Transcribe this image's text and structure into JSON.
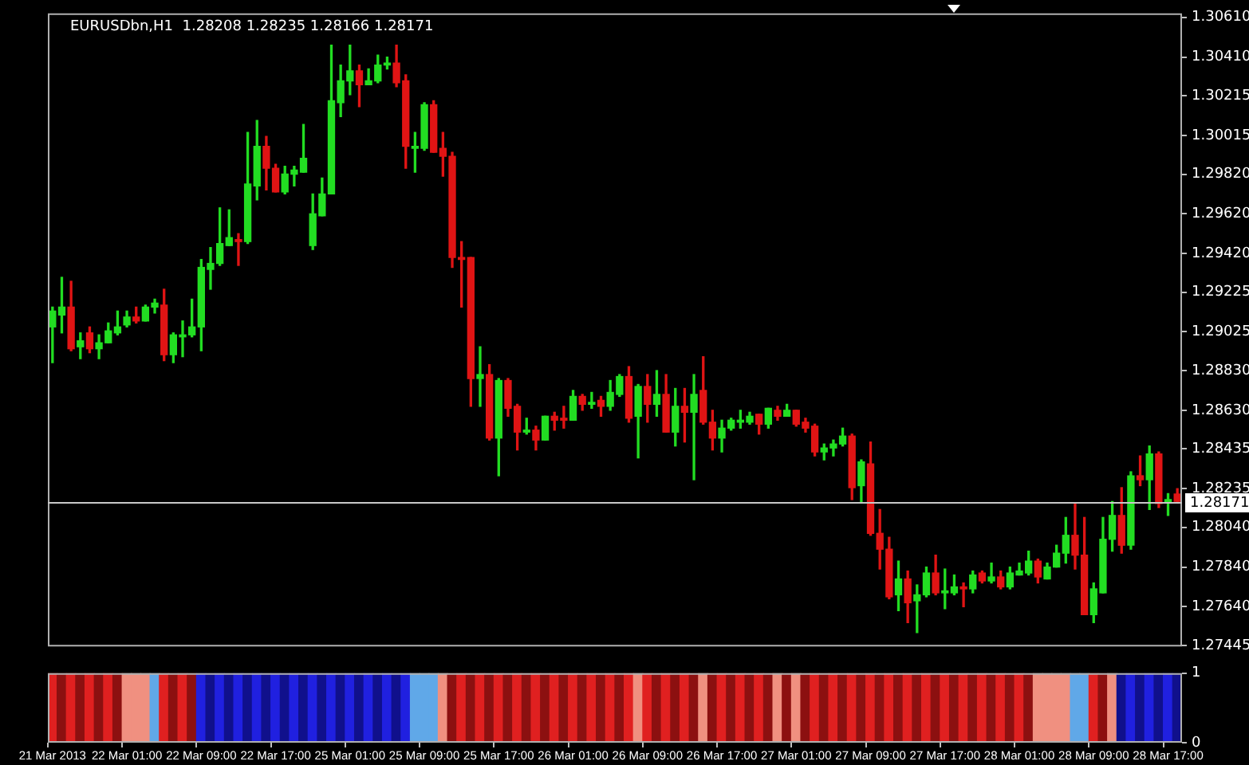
{
  "chart_data": [
    {
      "type": "candlestick",
      "title": "EURUSDbn,H1  1.28208 1.28235 1.28166 1.28171",
      "categories": [
        null,
        null,
        null,
        null,
        null,
        null,
        null,
        null,
        null,
        null,
        null,
        null,
        null,
        null,
        null,
        null,
        null,
        null,
        null,
        null,
        null,
        null,
        null,
        null,
        null,
        null,
        null,
        null,
        null,
        null,
        null,
        null,
        null,
        null,
        null,
        null,
        null,
        null,
        null,
        null,
        null,
        null,
        null,
        null,
        null,
        null,
        null,
        null,
        null,
        null,
        null,
        null,
        null,
        null,
        null,
        null,
        null,
        null,
        null,
        null,
        null,
        null,
        null,
        null,
        null,
        null,
        null,
        null,
        null,
        null,
        null,
        null,
        null,
        null,
        null,
        null,
        null,
        null,
        null,
        null,
        null,
        null,
        null,
        null,
        null,
        null,
        null,
        null,
        null,
        null,
        null,
        null,
        null,
        null,
        null,
        null,
        null,
        null,
        null,
        null,
        null,
        null,
        null,
        null,
        null,
        null,
        null,
        null,
        null,
        null,
        null,
        null,
        null,
        null,
        null,
        null,
        null,
        null,
        null,
        null,
        null,
        null
      ],
      "ohlc": [
        [
          1.2905,
          1.2915,
          1.2887,
          1.2913
        ],
        [
          1.2911,
          1.293,
          1.2902,
          1.2915
        ],
        [
          1.2915,
          1.2928,
          1.2893,
          1.2894
        ],
        [
          1.2895,
          1.2902,
          1.2889,
          1.2898
        ],
        [
          1.2902,
          1.2905,
          1.2892,
          1.2894
        ],
        [
          1.2894,
          1.2901,
          1.2889,
          1.2897
        ],
        [
          1.2897,
          1.2907,
          1.2897,
          1.2903
        ],
        [
          1.2902,
          1.2913,
          1.2901,
          1.2905
        ],
        [
          1.2906,
          1.2913,
          1.2905,
          1.291
        ],
        [
          1.291,
          1.2915,
          1.2907,
          1.2908
        ],
        [
          1.2908,
          1.2916,
          1.2908,
          1.2915
        ],
        [
          1.2915,
          1.2919,
          1.2912,
          1.2917
        ],
        [
          1.2916,
          1.2924,
          1.2888,
          1.2891
        ],
        [
          1.2891,
          1.2902,
          1.2887,
          1.2901
        ],
        [
          1.29,
          1.2908,
          1.289,
          1.2901
        ],
        [
          1.2901,
          1.2919,
          1.29,
          1.2905
        ],
        [
          1.2905,
          1.2939,
          1.2893,
          1.2935
        ],
        [
          1.2934,
          1.2945,
          1.2924,
          1.2937
        ],
        [
          1.2937,
          1.2965,
          1.2936,
          1.2947
        ],
        [
          1.2946,
          1.2964,
          1.2946,
          1.295
        ],
        [
          1.2949,
          1.2952,
          1.2936,
          1.2948
        ],
        [
          1.2948,
          1.3003,
          1.2947,
          1.2977
        ],
        [
          1.2976,
          1.3009,
          1.2969,
          1.2996
        ],
        [
          1.2996,
          1.3001,
          1.2974,
          1.2985
        ],
        [
          1.2985,
          1.2987,
          1.2973,
          1.2973
        ],
        [
          1.2973,
          1.2986,
          1.2972,
          1.2982
        ],
        [
          1.2982,
          1.2986,
          1.2976,
          1.2984
        ],
        [
          1.2983,
          1.3007,
          1.2983,
          1.299
        ],
        [
          1.2946,
          1.2972,
          1.2944,
          1.2962
        ],
        [
          1.2961,
          1.298,
          1.2961,
          1.2972
        ],
        [
          1.2972,
          1.3047,
          1.2972,
          1.3019
        ],
        [
          1.3018,
          1.3037,
          1.3011,
          1.3029
        ],
        [
          1.3029,
          1.3047,
          1.3022,
          1.3034
        ],
        [
          1.3034,
          1.3037,
          1.3016,
          1.3027
        ],
        [
          1.3027,
          1.3035,
          1.3027,
          1.3029
        ],
        [
          1.3029,
          1.3042,
          1.3028,
          1.3037
        ],
        [
          1.3037,
          1.3041,
          1.3035,
          1.3038
        ],
        [
          1.3038,
          1.3047,
          1.3026,
          1.3028
        ],
        [
          1.3029,
          1.3032,
          1.2985,
          1.2996
        ],
        [
          1.2995,
          1.3003,
          1.2983,
          1.2996
        ],
        [
          1.2995,
          1.3018,
          1.2994,
          1.3017
        ],
        [
          1.3017,
          1.3019,
          1.2993,
          1.2993
        ],
        [
          1.2995,
          1.3003,
          1.2981,
          1.2991
        ],
        [
          1.2991,
          1.2993,
          1.2935,
          1.294
        ],
        [
          1.294,
          1.2948,
          1.2915,
          1.2939
        ],
        [
          1.294,
          1.294,
          1.2865,
          1.2879
        ],
        [
          1.2879,
          1.2895,
          1.2865,
          1.2881
        ],
        [
          1.2881,
          1.2886,
          1.2848,
          1.2849
        ],
        [
          1.2849,
          1.2879,
          1.283,
          1.2878
        ],
        [
          1.2878,
          1.2879,
          1.286,
          1.2864
        ],
        [
          1.2865,
          1.2866,
          1.2843,
          1.2852
        ],
        [
          1.2852,
          1.2859,
          1.2851,
          1.2853
        ],
        [
          1.2853,
          1.2855,
          1.2843,
          1.2848
        ],
        [
          1.2848,
          1.286,
          1.2848,
          1.286
        ],
        [
          1.286,
          1.2862,
          1.2853,
          1.2858
        ],
        [
          1.2859,
          1.2865,
          1.2854,
          1.2858
        ],
        [
          1.2858,
          1.2873,
          1.2858,
          1.287
        ],
        [
          1.287,
          1.2871,
          1.2863,
          1.2866
        ],
        [
          1.2866,
          1.2872,
          1.2864,
          1.2867
        ],
        [
          1.2868,
          1.287,
          1.286,
          1.2865
        ],
        [
          1.2865,
          1.2878,
          1.2863,
          1.2872
        ],
        [
          1.2871,
          1.2881,
          1.287,
          1.288
        ],
        [
          1.288,
          1.2885,
          1.2857,
          1.2859
        ],
        [
          1.286,
          1.2876,
          1.2839,
          1.2875
        ],
        [
          1.2875,
          1.2881,
          1.2857,
          1.2866
        ],
        [
          1.2866,
          1.2883,
          1.286,
          1.2871
        ],
        [
          1.2871,
          1.2881,
          1.2852,
          1.2852
        ],
        [
          1.2852,
          1.2874,
          1.2845,
          1.2865
        ],
        [
          1.2865,
          1.2874,
          1.2847,
          1.2862
        ],
        [
          1.2862,
          1.2881,
          1.2828,
          1.2871
        ],
        [
          1.2873,
          1.289,
          1.2856,
          1.2857
        ],
        [
          1.2857,
          1.2863,
          1.2843,
          1.2849
        ],
        [
          1.2849,
          1.2858,
          1.2842,
          1.2854
        ],
        [
          1.2854,
          1.2859,
          1.2853,
          1.2858
        ],
        [
          1.2857,
          1.2863,
          1.2854,
          1.2858
        ],
        [
          1.2857,
          1.2862,
          1.2856,
          1.286
        ],
        [
          1.2861,
          1.2861,
          1.2851,
          1.2856
        ],
        [
          1.2856,
          1.2864,
          1.2854,
          1.2864
        ],
        [
          1.2863,
          1.2865,
          1.2858,
          1.286
        ],
        [
          1.286,
          1.2866,
          1.286,
          1.2863
        ],
        [
          1.2863,
          1.2863,
          1.2855,
          1.2856
        ],
        [
          1.2857,
          1.2859,
          1.2852,
          1.2854
        ],
        [
          1.2855,
          1.2856,
          1.284,
          1.2842
        ],
        [
          1.2842,
          1.2846,
          1.2838,
          1.2844
        ],
        [
          1.2844,
          1.2848,
          1.284,
          1.2846
        ],
        [
          1.2846,
          1.2854,
          1.2845,
          1.285
        ],
        [
          1.285,
          1.2851,
          1.2818,
          1.2824
        ],
        [
          1.2825,
          1.2838,
          1.2817,
          1.2837
        ],
        [
          1.2836,
          1.2847,
          1.28,
          1.2801
        ],
        [
          1.2801,
          1.2813,
          1.2783,
          1.2793
        ],
        [
          1.2793,
          1.2799,
          1.2768,
          1.2769
        ],
        [
          1.277,
          1.2787,
          1.2762,
          1.2778
        ],
        [
          1.2778,
          1.2782,
          1.2756,
          1.2766
        ],
        [
          1.2767,
          1.2775,
          1.2751,
          1.277
        ],
        [
          1.277,
          1.2784,
          1.2769,
          1.2781
        ],
        [
          1.2781,
          1.279,
          1.277,
          1.2771
        ],
        [
          1.2771,
          1.2783,
          1.2763,
          1.2772
        ],
        [
          1.2771,
          1.278,
          1.277,
          1.2774
        ],
        [
          1.2774,
          1.2776,
          1.2764,
          1.2773
        ],
        [
          1.2773,
          1.2782,
          1.2771,
          1.278
        ],
        [
          1.2781,
          1.2782,
          1.2776,
          1.2777
        ],
        [
          1.2777,
          1.2786,
          1.2776,
          1.2779
        ],
        [
          1.2779,
          1.2782,
          1.2773,
          1.2774
        ],
        [
          1.2774,
          1.2784,
          1.2773,
          1.2781
        ],
        [
          1.278,
          1.2786,
          1.278,
          1.2782
        ],
        [
          1.2781,
          1.2792,
          1.278,
          1.2787
        ],
        [
          1.2787,
          1.2788,
          1.2776,
          1.2779
        ],
        [
          1.2778,
          1.2786,
          1.2778,
          1.2784
        ],
        [
          1.2784,
          1.2795,
          1.2784,
          1.2791
        ],
        [
          1.2791,
          1.2809,
          1.2786,
          1.28
        ],
        [
          1.28,
          1.2816,
          1.2783,
          1.279
        ],
        [
          1.279,
          1.2809,
          1.276,
          1.276
        ],
        [
          1.276,
          1.2776,
          1.2756,
          1.2773
        ],
        [
          1.2771,
          1.2809,
          1.2771,
          1.2798
        ],
        [
          1.2798,
          1.2817,
          1.2792,
          1.281
        ],
        [
          1.281,
          1.2824,
          1.2791,
          1.2795
        ],
        [
          1.2795,
          1.2832,
          1.2793,
          1.283
        ],
        [
          1.283,
          1.284,
          1.2825,
          1.2828
        ],
        [
          1.2828,
          1.2845,
          1.2813,
          1.2841
        ],
        [
          1.2841,
          1.2842,
          1.2814,
          1.2816
        ],
        [
          1.2817,
          1.2821,
          1.281,
          1.2818
        ],
        [
          1.28208,
          1.28235,
          1.28166,
          1.28171
        ]
      ],
      "ylim": [
        1.2744,
        1.3063
      ],
      "yticks": [
        {
          "value": 1.3061,
          "label": "1.30610"
        },
        {
          "value": 1.3041,
          "label": "1.30410"
        },
        1.30215,
        1.30015,
        {
          "value": 1.2982,
          "label": "1.29820"
        },
        {
          "value": 1.2962,
          "label": "1.29620"
        },
        {
          "value": 1.2942,
          "label": "1.29420"
        },
        1.29225,
        1.29025,
        {
          "value": 1.2883,
          "label": "1.28830"
        },
        {
          "value": 1.2863,
          "label": "1.28630"
        },
        1.28435,
        1.28235,
        {
          "value": 1.2804,
          "label": "1.28040"
        },
        {
          "value": 1.2784,
          "label": "1.27840"
        },
        {
          "value": 1.2764,
          "label": "1.27640"
        },
        1.27445
      ],
      "ref_lines": [
        {
          "axis": "y",
          "value": 1.28171,
          "label": "1.28171",
          "color": "#c8c8c8"
        }
      ],
      "tick_labels": "y"
    },
    {
      "type": "bar",
      "categories": [
        "21 Mar 2013",
        null,
        null,
        null,
        null,
        null,
        null,
        null,
        "22 Mar 01:00",
        null,
        null,
        null,
        null,
        null,
        null,
        null,
        "22 Mar 09:00",
        null,
        null,
        null,
        null,
        null,
        null,
        null,
        "22 Mar 17:00",
        null,
        null,
        null,
        null,
        null,
        null,
        null,
        "25 Mar 01:00",
        null,
        null,
        null,
        null,
        null,
        null,
        null,
        "25 Mar 09:00",
        null,
        null,
        null,
        null,
        null,
        null,
        null,
        "25 Mar 17:00",
        null,
        null,
        null,
        null,
        null,
        null,
        null,
        "26 Mar 01:00",
        null,
        null,
        null,
        null,
        null,
        null,
        null,
        "26 Mar 09:00",
        null,
        null,
        null,
        null,
        null,
        null,
        null,
        "26 Mar 17:00",
        null,
        null,
        null,
        null,
        null,
        null,
        null,
        "27 Mar 01:00",
        null,
        null,
        null,
        null,
        null,
        null,
        null,
        "27 Mar 09:00",
        null,
        null,
        null,
        null,
        null,
        null,
        null,
        "27 Mar 17:00",
        null,
        null,
        null,
        null,
        null,
        null,
        null,
        "28 Mar 01:00",
        null,
        null,
        null,
        null,
        null,
        null,
        null,
        "28 Mar 09:00",
        null,
        null,
        null,
        null,
        null,
        null,
        null,
        "28 Mar 17:00",
        null
      ],
      "values": [
        1,
        1,
        1,
        1,
        1,
        1,
        1,
        1,
        1,
        1,
        1,
        1,
        1,
        1,
        1,
        1,
        1,
        1,
        1,
        1,
        1,
        1,
        1,
        1,
        1,
        1,
        1,
        1,
        1,
        1,
        1,
        1,
        1,
        1,
        1,
        1,
        1,
        1,
        1,
        1,
        1,
        1,
        1,
        1,
        1,
        1,
        1,
        1,
        1,
        1,
        1,
        1,
        1,
        1,
        1,
        1,
        1,
        1,
        1,
        1,
        1,
        1,
        1,
        1,
        1,
        1,
        1,
        1,
        1,
        1,
        1,
        1,
        1,
        1,
        1,
        1,
        1,
        1,
        1,
        1,
        1,
        1,
        1,
        1,
        1,
        1,
        1,
        1,
        1,
        1,
        1,
        1,
        1,
        1,
        1,
        1,
        1,
        1,
        1,
        1,
        1,
        1,
        1,
        1,
        1,
        1,
        1,
        1,
        1,
        1,
        1,
        1,
        1,
        1,
        1,
        1,
        1,
        1,
        1,
        1,
        1,
        1
      ],
      "colors": [
        "#e02020",
        "#8c1010",
        "#e02020",
        "#8c1010",
        "#e02020",
        "#8c1010",
        "#e02020",
        "#8c1010",
        "#f09080",
        "#f09080",
        "#f09080",
        "#60a8e8",
        "#e02020",
        "#8c1010",
        "#e02020",
        "#8c1010",
        "#2020e0",
        "#10108c",
        "#2020e0",
        "#10108c",
        "#2020e0",
        "#10108c",
        "#2020e0",
        "#10108c",
        "#2020e0",
        "#10108c",
        "#2020e0",
        "#10108c",
        "#2020e0",
        "#10108c",
        "#2020e0",
        "#10108c",
        "#2020e0",
        "#10108c",
        "#2020e0",
        "#10108c",
        "#2020e0",
        "#10108c",
        "#2020e0",
        "#60a8e8",
        "#60a8e8",
        "#60a8e8",
        "#f09080",
        "#8c1010",
        "#e02020",
        "#8c1010",
        "#e02020",
        "#8c1010",
        "#e02020",
        "#8c1010",
        "#e02020",
        "#8c1010",
        "#e02020",
        "#8c1010",
        "#e02020",
        "#8c1010",
        "#e02020",
        "#8c1010",
        "#e02020",
        "#8c1010",
        "#e02020",
        "#8c1010",
        "#e02020",
        "#f09080",
        "#e02020",
        "#8c1010",
        "#e02020",
        "#8c1010",
        "#e02020",
        "#8c1010",
        "#f09080",
        "#8c1010",
        "#e02020",
        "#8c1010",
        "#e02020",
        "#8c1010",
        "#e02020",
        "#8c1010",
        "#f09080",
        "#8c1010",
        "#f09080",
        "#8c1010",
        "#e02020",
        "#8c1010",
        "#e02020",
        "#8c1010",
        "#e02020",
        "#8c1010",
        "#e02020",
        "#8c1010",
        "#e02020",
        "#8c1010",
        "#e02020",
        "#8c1010",
        "#e02020",
        "#8c1010",
        "#e02020",
        "#8c1010",
        "#e02020",
        "#8c1010",
        "#e02020",
        "#8c1010",
        "#e02020",
        "#8c1010",
        "#e02020",
        "#8c1010",
        "#f09080",
        "#f09080",
        "#f09080",
        "#f09080",
        "#60a8e8",
        "#60a8e8",
        "#e02020",
        "#8c1010",
        "#f09080",
        "#10108c",
        "#2020e0",
        "#10108c",
        "#2020e0",
        "#10108c",
        "#2020e0",
        "#10108c"
      ],
      "ylim": [
        0,
        1
      ],
      "yticks": [
        0,
        1
      ]
    }
  ]
}
